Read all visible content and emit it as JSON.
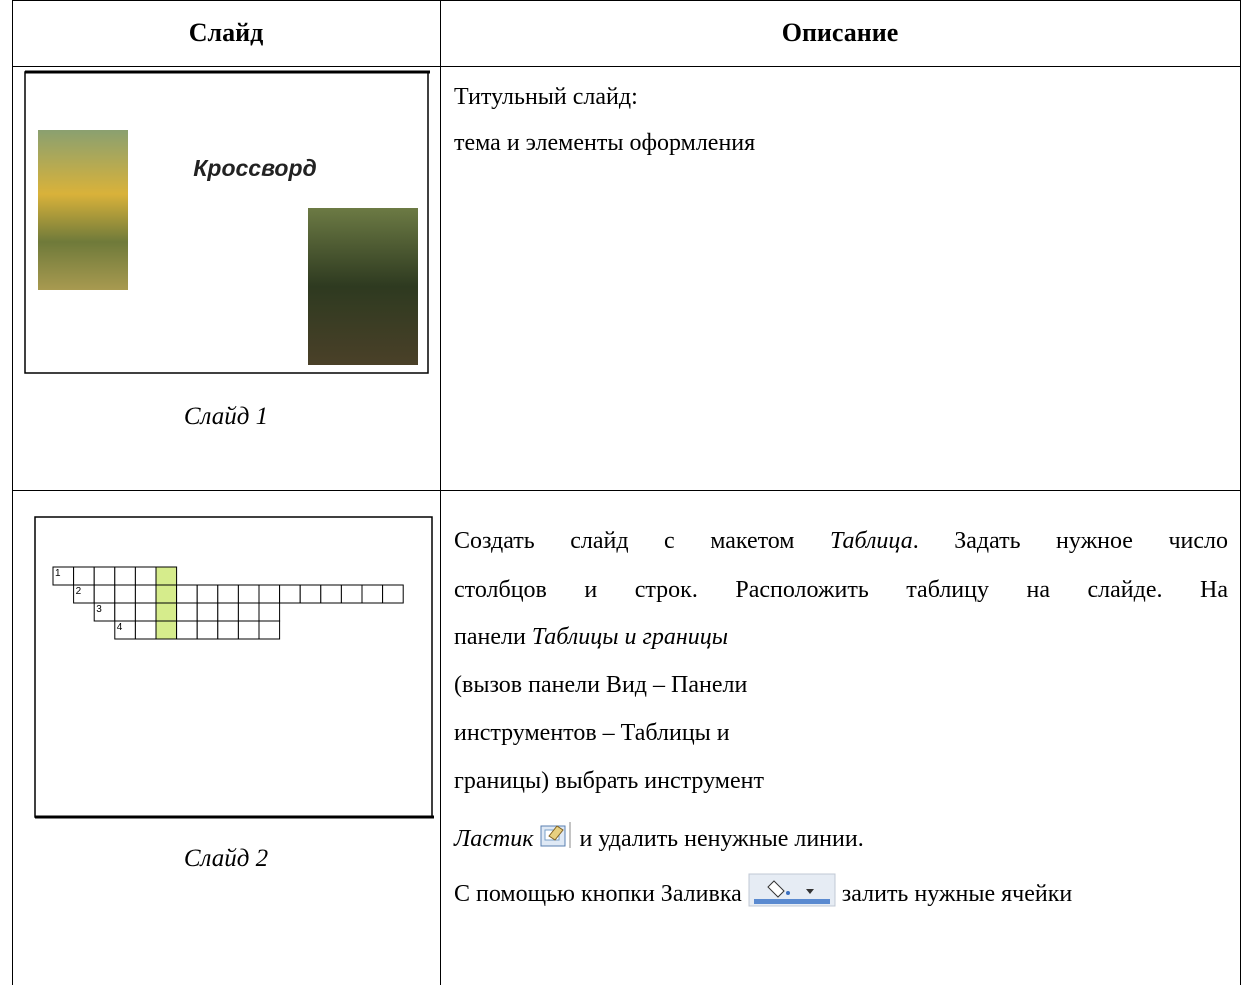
{
  "table": {
    "header": [
      "Слайд",
      "Описание"
    ],
    "rows": [
      {
        "slide": {
          "title": "Кроссворд",
          "caption": "Слайд 1"
        },
        "description": [
          [
            "Титульный слайд:"
          ],
          [
            "тема и элементы оформления"
          ]
        ]
      },
      {
        "slide": {
          "caption": "Слайд 2",
          "grid_numbers": [
            "1",
            "2",
            "3",
            "4"
          ]
        },
        "description": [
          [
            "Создать слайд с макетом ",
            "Таблица",
            ". Задать нужное число"
          ],
          [
            "столбцов и строк. Расположить таблицу на слайде. На"
          ],
          [
            "панели ",
            "Таблицы и границы"
          ],
          [
            "(вызов панели Вид – Панели"
          ],
          [
            "инструментов – Таблицы и"
          ],
          [
            "границы) выбрать инструмент"
          ],
          [
            "Ластик",
            " и удалить ненужные линии."
          ],
          [
            "С помощью кнопки Заливка",
            " залить нужные ячейки"
          ]
        ]
      }
    ]
  }
}
